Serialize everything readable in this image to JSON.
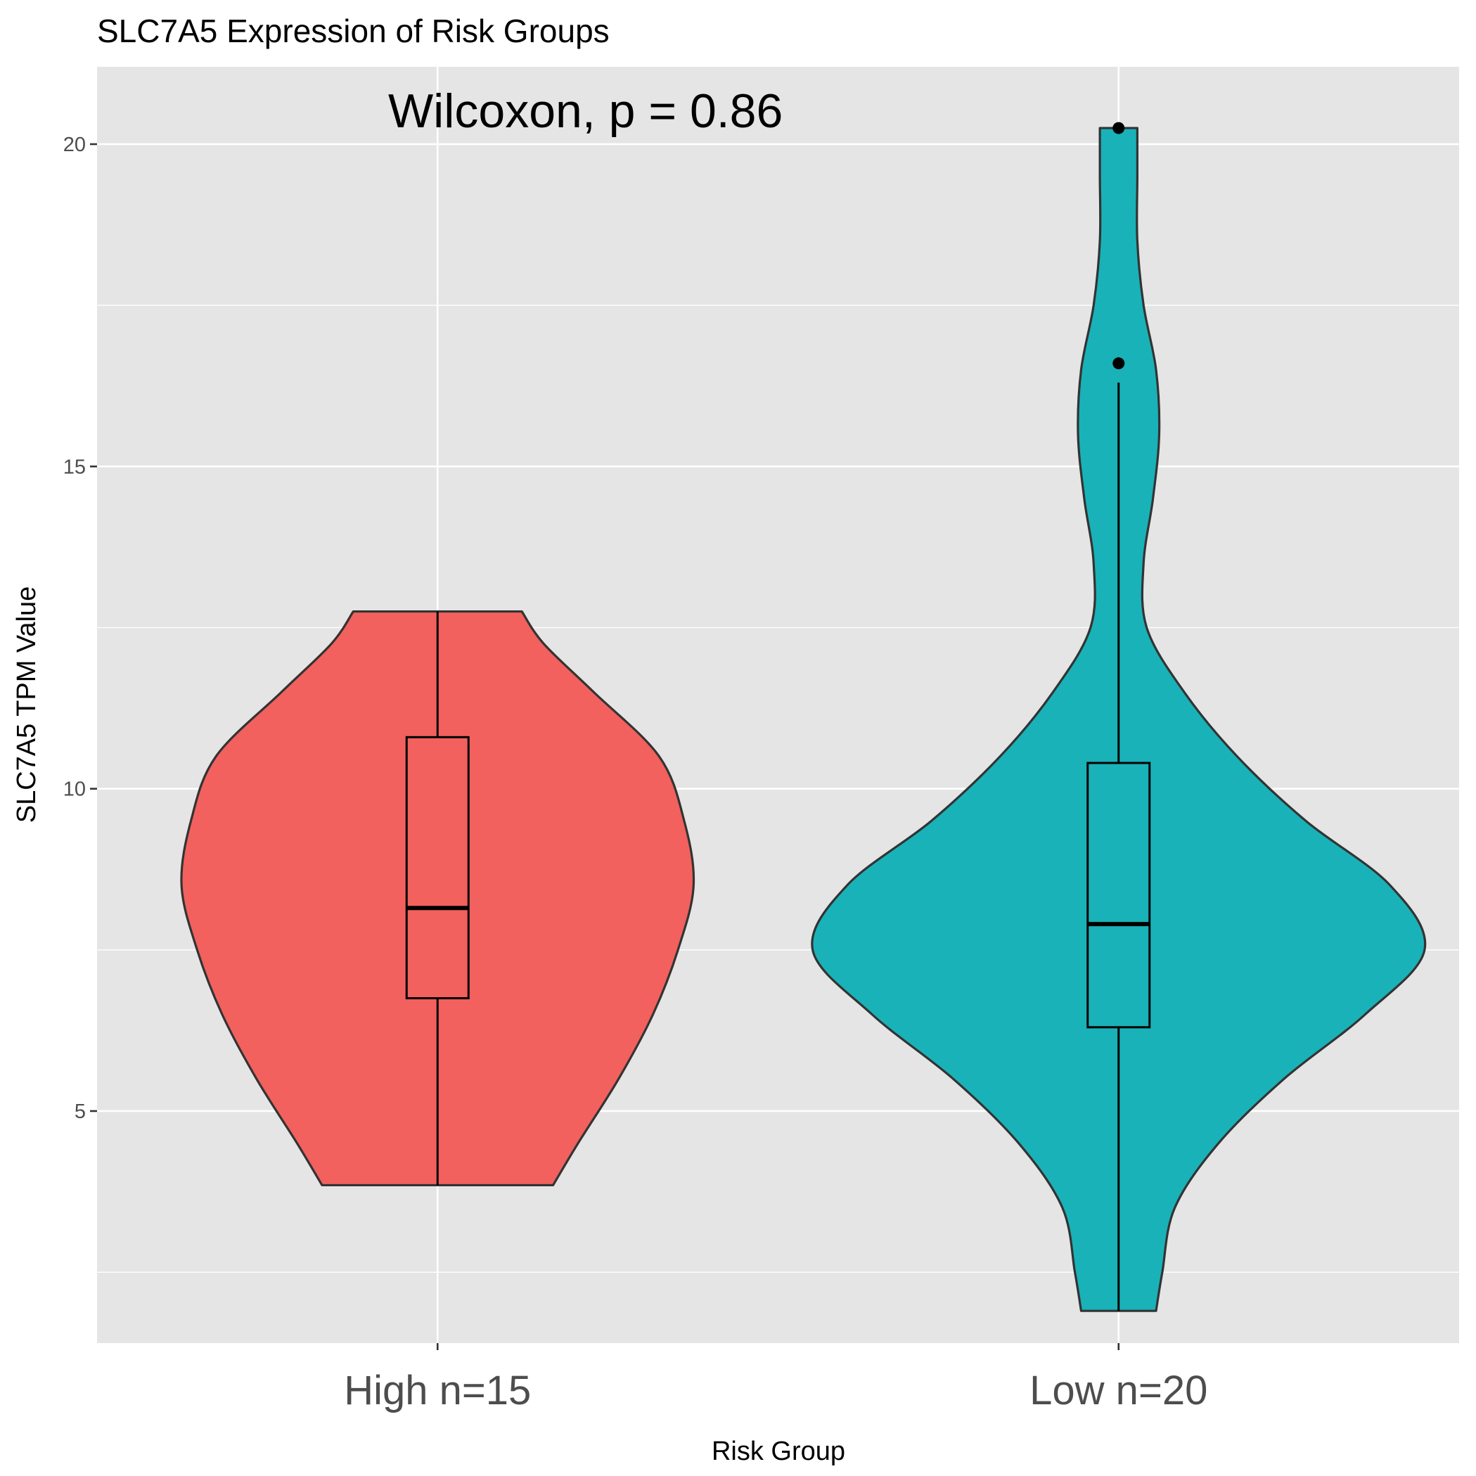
{
  "chart_data": {
    "type": "violin",
    "title": "SLC7A5 Expression of Risk Groups",
    "annotation": "Wilcoxon, p = 0.86",
    "xlabel": "Risk Group",
    "ylabel": "SLC7A5 TPM Value",
    "ylim": [
      1.4,
      21.2
    ],
    "yticks": [
      5,
      10,
      15,
      20
    ],
    "grid": true,
    "background": "#e5e5e5",
    "categories": [
      "High n=15",
      "Low n=20"
    ],
    "groups": [
      {
        "name": "High n=15",
        "color": "#f2615d",
        "min": 3.85,
        "q1": 6.75,
        "median": 8.15,
        "q3": 10.8,
        "whisker_low": 3.85,
        "whisker_high": 12.75,
        "max": 12.75,
        "outliers": [],
        "density": [
          [
            3.85,
            0.37
          ],
          [
            4.5,
            0.45
          ],
          [
            5.5,
            0.58
          ],
          [
            6.5,
            0.69
          ],
          [
            7.5,
            0.77
          ],
          [
            8.5,
            0.82
          ],
          [
            9.5,
            0.79
          ],
          [
            10.5,
            0.71
          ],
          [
            11.5,
            0.5
          ],
          [
            12.25,
            0.34
          ],
          [
            12.75,
            0.27
          ]
        ]
      },
      {
        "name": "Low n=20",
        "color": "#19b2b8",
        "min": 1.9,
        "q1": 6.3,
        "median": 7.9,
        "q3": 10.4,
        "whisker_low": 1.9,
        "whisker_high": 16.3,
        "max": 20.25,
        "outliers": [
          16.6,
          20.25
        ],
        "density": [
          [
            1.9,
            0.12
          ],
          [
            2.5,
            0.14
          ],
          [
            3.5,
            0.18
          ],
          [
            4.5,
            0.32
          ],
          [
            5.5,
            0.53
          ],
          [
            6.5,
            0.79
          ],
          [
            7.5,
            0.98
          ],
          [
            8.5,
            0.87
          ],
          [
            9.5,
            0.6
          ],
          [
            10.5,
            0.38
          ],
          [
            11.5,
            0.21
          ],
          [
            12.5,
            0.09
          ],
          [
            13.5,
            0.08
          ],
          [
            14.5,
            0.11
          ],
          [
            15.5,
            0.13
          ],
          [
            16.5,
            0.12
          ],
          [
            17.5,
            0.08
          ],
          [
            18.5,
            0.06
          ],
          [
            19.5,
            0.06
          ],
          [
            20.25,
            0.06
          ]
        ]
      }
    ]
  }
}
